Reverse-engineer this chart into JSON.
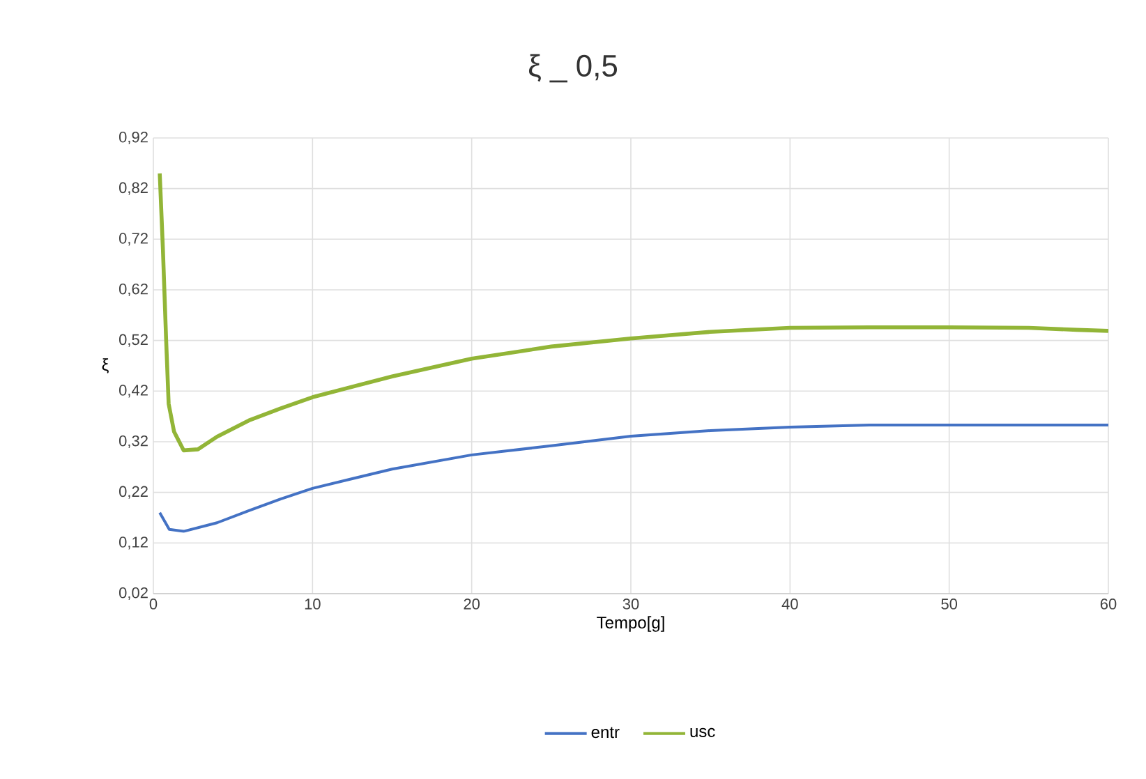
{
  "chart_data": {
    "type": "line",
    "title": "ξ _ 0,5",
    "xlabel": "Tempo[g]",
    "ylabel": "ξ",
    "xlim": [
      0,
      60
    ],
    "ylim": [
      0.02,
      0.92
    ],
    "xticks": [
      0,
      10,
      20,
      30,
      40,
      50,
      60
    ],
    "yticks": [
      {
        "value": 0.02,
        "label": "0,02"
      },
      {
        "value": 0.12,
        "label": "0,12"
      },
      {
        "value": 0.22,
        "label": "0,22"
      },
      {
        "value": 0.32,
        "label": "0,32"
      },
      {
        "value": 0.42,
        "label": "0,42"
      },
      {
        "value": 0.52,
        "label": "0,52"
      },
      {
        "value": 0.62,
        "label": "0,62"
      },
      {
        "value": 0.72,
        "label": "0,72"
      },
      {
        "value": 0.82,
        "label": "0,82"
      },
      {
        "value": 0.92,
        "label": "0,92"
      }
    ],
    "grid": true,
    "legend": "bottom",
    "series": [
      {
        "name": "entr",
        "color": "#4472c4",
        "x": [
          0.4,
          1.0,
          1.9,
          4,
          6,
          8,
          10,
          15,
          20,
          25,
          30,
          35,
          40,
          45,
          50,
          55,
          60
        ],
        "values": [
          0.18,
          0.147,
          0.143,
          0.16,
          0.184,
          0.207,
          0.228,
          0.266,
          0.294,
          0.312,
          0.331,
          0.342,
          0.349,
          0.353,
          0.353,
          0.353,
          0.353
        ]
      },
      {
        "name": "usc",
        "color": "#92b537",
        "x": [
          0.4,
          0.6,
          0.8,
          0.96,
          1.3,
          1.9,
          2.8,
          4,
          6,
          8,
          10,
          15,
          20,
          25,
          30,
          35,
          40,
          45,
          50,
          55,
          58,
          60
        ],
        "values": [
          0.85,
          0.7,
          0.523,
          0.395,
          0.34,
          0.303,
          0.305,
          0.33,
          0.362,
          0.386,
          0.408,
          0.449,
          0.484,
          0.508,
          0.524,
          0.537,
          0.545,
          0.546,
          0.546,
          0.545,
          0.541,
          0.539
        ]
      }
    ]
  }
}
